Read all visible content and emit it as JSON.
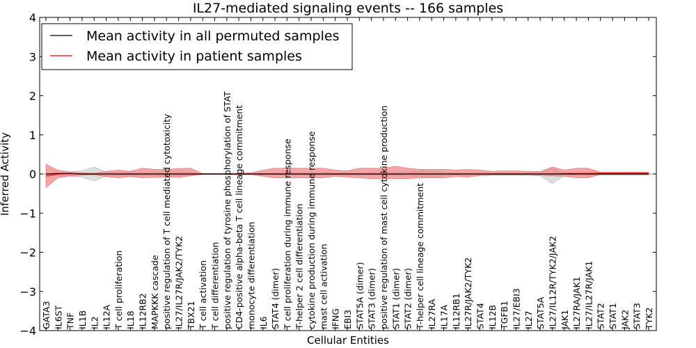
{
  "chart_data": {
    "type": "line",
    "title": "IL27-mediated signaling events -- 166 samples",
    "xlabel": "Cellular Entities",
    "ylabel": "Inferred Activity",
    "ylim": [
      -4,
      4
    ],
    "yticks": [
      "−4",
      "−3",
      "−2",
      "−1",
      "0",
      "1",
      "2",
      "3",
      "4"
    ],
    "legend_position": "top-left",
    "colors": {
      "permuted": "#000000",
      "patient": "#ff0000",
      "patient_band": "#f08080",
      "permuted_band": "#c8c8c8"
    },
    "categories": [
      "GATA3",
      "IL6ST",
      "TNF",
      "IL1B",
      "IL2",
      "IL12A",
      "T cell proliferation",
      "IL18",
      "IL12RB2",
      "MAPKKK cascade",
      "positive regulation of T cell mediated cytotoxicity",
      "IL27/IL27R/JAK2/TYK2",
      "TBX21",
      "T cell activation",
      "T cell differentiation",
      "positive regulation of tyrosine phosphorylation of STAT",
      "CD4-positive alpha-beta T cell lineage commitment",
      "monocyte differentiation",
      "IL6",
      "STAT4 (dimer)",
      "T cell proliferation during immune response",
      "T-helper 2 cell differentiation",
      "cytokine production during immune response",
      "mast cell activation",
      "IFNG",
      "EBI3",
      "STAT5A (dimer)",
      "STAT3 (dimer)",
      "positive regulation of mast cell cytokine production",
      "STAT1 (dimer)",
      "STAT2 (dimer)",
      "T-helper cell lineage commitment",
      "IL27RA",
      "IL17A",
      "IL12RB1",
      "IL27R/JAK2/TYK2",
      "STAT4",
      "IL12B",
      "TGFB1",
      "IL27/EBI3",
      "IL27",
      "STAT5A",
      "IL27/IL12R/TYK2/JAK2",
      "JAK1",
      "IL27RA/JAK1",
      "IL27/IL27R/JAK1",
      "STAT2",
      "STAT1",
      "JAK2",
      "STAT3",
      "TYK2"
    ],
    "series": [
      {
        "name": "Mean activity in all permuted samples",
        "values": [
          0.0,
          0.01,
          0.01,
          0.0,
          0.0,
          0.0,
          0.0,
          0.0,
          0.0,
          0.0,
          0.0,
          0.0,
          0.0,
          0.0,
          0.0,
          0.0,
          0.0,
          0.0,
          0.0,
          0.0,
          0.0,
          0.0,
          0.0,
          0.0,
          0.0,
          0.0,
          0.0,
          0.0,
          0.0,
          0.0,
          0.0,
          0.0,
          0.0,
          0.0,
          0.0,
          0.0,
          0.0,
          0.0,
          0.0,
          0.0,
          0.0,
          0.0,
          0.0,
          0.0,
          0.0,
          0.0,
          0.0,
          0.0,
          0.0,
          0.0,
          0.0
        ],
        "band_low": [
          -0.03,
          -0.05,
          -0.06,
          -0.08,
          -0.18,
          -0.05,
          -0.04,
          -0.06,
          -0.04,
          -0.05,
          -0.05,
          -0.05,
          -0.04,
          -0.01,
          -0.01,
          -0.01,
          -0.02,
          -0.02,
          -0.03,
          -0.02,
          -0.03,
          -0.03,
          -0.04,
          -0.04,
          -0.03,
          -0.03,
          -0.03,
          -0.03,
          -0.04,
          -0.04,
          -0.06,
          -0.07,
          -0.08,
          -0.04,
          -0.03,
          -0.04,
          -0.04,
          -0.03,
          -0.03,
          -0.03,
          -0.03,
          -0.05,
          -0.25,
          -0.04,
          -0.03,
          -0.05,
          -0.03,
          -0.03,
          -0.03,
          -0.03,
          -0.03
        ],
        "band_high": [
          0.03,
          0.05,
          0.06,
          0.08,
          0.18,
          0.05,
          0.04,
          0.06,
          0.04,
          0.05,
          0.05,
          0.05,
          0.04,
          0.01,
          0.01,
          0.01,
          0.02,
          0.02,
          0.03,
          0.02,
          0.03,
          0.03,
          0.04,
          0.04,
          0.03,
          0.03,
          0.03,
          0.03,
          0.04,
          0.04,
          0.06,
          0.07,
          0.08,
          0.04,
          0.03,
          0.04,
          0.04,
          0.03,
          0.03,
          0.03,
          0.03,
          0.05,
          0.15,
          0.04,
          0.03,
          0.05,
          0.03,
          0.03,
          0.03,
          0.03,
          0.03
        ]
      },
      {
        "name": "Mean activity in patient samples",
        "values": [
          -0.05,
          0.0,
          0.01,
          0.0,
          0.0,
          0.0,
          0.0,
          0.0,
          0.0,
          0.0,
          0.0,
          0.0,
          0.0,
          0.0,
          0.0,
          0.0,
          0.0,
          0.0,
          0.0,
          0.0,
          0.0,
          0.0,
          0.0,
          0.0,
          0.0,
          0.0,
          0.0,
          0.0,
          0.0,
          0.0,
          0.0,
          0.0,
          0.0,
          0.0,
          0.0,
          0.0,
          0.0,
          0.0,
          0.0,
          0.0,
          0.0,
          0.0,
          0.0,
          0.01,
          0.01,
          0.01,
          0.02,
          0.02,
          0.02,
          0.02,
          0.02
        ],
        "band_low": [
          -0.35,
          -0.1,
          -0.05,
          -0.03,
          -0.02,
          -0.07,
          -0.1,
          -0.07,
          -0.1,
          -0.09,
          -0.08,
          -0.09,
          -0.05,
          -0.01,
          -0.01,
          -0.01,
          -0.02,
          -0.01,
          -0.06,
          -0.1,
          -0.1,
          -0.1,
          -0.1,
          -0.1,
          -0.06,
          -0.08,
          -0.1,
          -0.12,
          -0.12,
          -0.12,
          -0.12,
          -0.1,
          -0.1,
          -0.1,
          -0.07,
          -0.08,
          -0.04,
          -0.03,
          -0.03,
          -0.03,
          -0.03,
          -0.03,
          -0.05,
          -0.06,
          -0.1,
          -0.1,
          -0.01,
          -0.01,
          -0.01,
          -0.01,
          -0.01
        ],
        "band_high": [
          0.25,
          0.1,
          0.05,
          0.03,
          0.02,
          0.07,
          0.1,
          0.07,
          0.15,
          0.12,
          0.12,
          0.14,
          0.15,
          0.01,
          0.01,
          0.01,
          0.02,
          0.03,
          0.1,
          0.15,
          0.15,
          0.15,
          0.15,
          0.15,
          0.1,
          0.08,
          0.15,
          0.15,
          0.15,
          0.2,
          0.15,
          0.12,
          0.12,
          0.12,
          0.1,
          0.12,
          0.1,
          0.07,
          0.08,
          0.08,
          0.07,
          0.06,
          0.18,
          0.1,
          0.15,
          0.15,
          0.05,
          0.05,
          0.05,
          0.05,
          0.05
        ]
      }
    ]
  }
}
